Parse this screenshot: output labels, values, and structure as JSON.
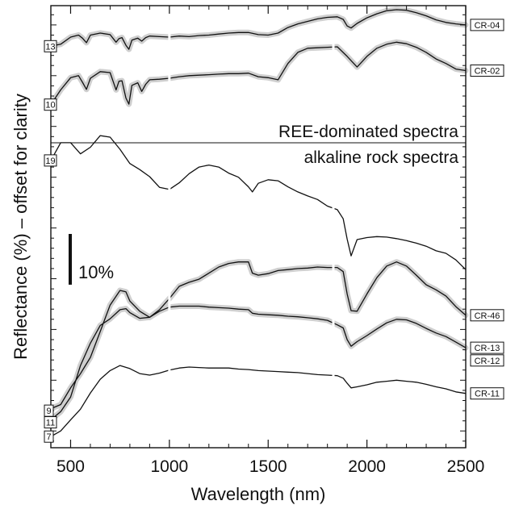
{
  "chart_data": {
    "type": "line",
    "xlabel": "Wavelength (nm)",
    "ylabel": "Reflectance (%) – offset for clarity",
    "xlim": [
      400,
      2500
    ],
    "xticks": [
      {
        "value": 500,
        "label": "500"
      },
      {
        "value": 1000,
        "label": "1000"
      },
      {
        "value": 1500,
        "label": "1500"
      },
      {
        "value": 2000,
        "label": "2000"
      },
      {
        "value": 2500,
        "label": "2500"
      }
    ],
    "grid": false,
    "legend": "none",
    "scale_bar": {
      "label": "10%",
      "value": 10
    },
    "section_labels": [
      "REE-dominated spectra",
      "alkaline rock spectra"
    ],
    "series": [
      {
        "name": "CR-04",
        "count": "13",
        "shaded": true,
        "points": [
          [
            400,
            65.8
          ],
          [
            450,
            66.2
          ],
          [
            500,
            67.6
          ],
          [
            540,
            68.0
          ],
          [
            560,
            67.4
          ],
          [
            580,
            66.5
          ],
          [
            600,
            68.0
          ],
          [
            650,
            68.4
          ],
          [
            700,
            68.1
          ],
          [
            730,
            66.6
          ],
          [
            745,
            67.3
          ],
          [
            760,
            67.5
          ],
          [
            780,
            66.0
          ],
          [
            795,
            65.2
          ],
          [
            810,
            67.0
          ],
          [
            840,
            67.4
          ],
          [
            860,
            66.8
          ],
          [
            880,
            67.5
          ],
          [
            900,
            67.8
          ],
          [
            950,
            67.7
          ],
          [
            1000,
            67.6
          ],
          [
            1050,
            67.8
          ],
          [
            1100,
            67.7
          ],
          [
            1150,
            67.9
          ],
          [
            1200,
            68.0
          ],
          [
            1250,
            68.2
          ],
          [
            1300,
            68.4
          ],
          [
            1350,
            68.5
          ],
          [
            1400,
            68.5
          ],
          [
            1450,
            68.1
          ],
          [
            1500,
            68.0
          ],
          [
            1550,
            68.4
          ],
          [
            1600,
            69.5
          ],
          [
            1650,
            70.2
          ],
          [
            1700,
            70.7
          ],
          [
            1750,
            71.2
          ],
          [
            1800,
            71.5
          ],
          [
            1850,
            71.6
          ],
          [
            1880,
            71.1
          ],
          [
            1900,
            69.8
          ],
          [
            1920,
            69.4
          ],
          [
            1950,
            70.3
          ],
          [
            2000,
            71.4
          ],
          [
            2050,
            72.2
          ],
          [
            2100,
            72.8
          ],
          [
            2150,
            73.0
          ],
          [
            2200,
            72.9
          ],
          [
            2250,
            72.4
          ],
          [
            2300,
            71.8
          ],
          [
            2350,
            71.0
          ],
          [
            2400,
            70.5
          ],
          [
            2450,
            70.2
          ],
          [
            2500,
            70.0
          ]
        ]
      },
      {
        "name": "CR-02",
        "count": "10",
        "shaded": true,
        "points": [
          [
            400,
            54.3
          ],
          [
            450,
            57.2
          ],
          [
            500,
            59.6
          ],
          [
            540,
            60.0
          ],
          [
            560,
            58.7
          ],
          [
            580,
            57.3
          ],
          [
            600,
            59.5
          ],
          [
            650,
            60.8
          ],
          [
            700,
            60.6
          ],
          [
            730,
            57.2
          ],
          [
            745,
            58.9
          ],
          [
            760,
            59.0
          ],
          [
            780,
            55.6
          ],
          [
            795,
            54.4
          ],
          [
            810,
            58.1
          ],
          [
            840,
            58.6
          ],
          [
            860,
            56.9
          ],
          [
            880,
            58.3
          ],
          [
            900,
            59.2
          ],
          [
            950,
            59.3
          ],
          [
            1000,
            59.5
          ],
          [
            1050,
            59.8
          ],
          [
            1100,
            60.0
          ],
          [
            1150,
            60.1
          ],
          [
            1200,
            60.2
          ],
          [
            1250,
            60.3
          ],
          [
            1300,
            60.4
          ],
          [
            1350,
            60.4
          ],
          [
            1400,
            60.5
          ],
          [
            1450,
            59.8
          ],
          [
            1500,
            59.6
          ],
          [
            1550,
            59.2
          ],
          [
            1600,
            62.4
          ],
          [
            1650,
            64.6
          ],
          [
            1700,
            65.4
          ],
          [
            1750,
            65.5
          ],
          [
            1800,
            65.6
          ],
          [
            1850,
            65.7
          ],
          [
            1900,
            63.8
          ],
          [
            1950,
            61.7
          ],
          [
            2000,
            63.8
          ],
          [
            2050,
            65.4
          ],
          [
            2100,
            66.2
          ],
          [
            2150,
            66.6
          ],
          [
            2200,
            66.3
          ],
          [
            2250,
            65.6
          ],
          [
            2300,
            64.6
          ],
          [
            2350,
            63.3
          ],
          [
            2400,
            62.4
          ],
          [
            2450,
            61.3
          ],
          [
            2500,
            61.0
          ]
        ]
      },
      {
        "name": "",
        "count": "19",
        "shaded": false,
        "points": [
          [
            400,
            43.3
          ],
          [
            450,
            46.8
          ],
          [
            500,
            46.8
          ],
          [
            550,
            44.6
          ],
          [
            600,
            45.9
          ],
          [
            650,
            48.2
          ],
          [
            700,
            47.9
          ],
          [
            750,
            45.5
          ],
          [
            800,
            42.7
          ],
          [
            850,
            41.5
          ],
          [
            900,
            40.1
          ],
          [
            950,
            38.0
          ],
          [
            1000,
            37.6
          ],
          [
            1050,
            38.9
          ],
          [
            1100,
            40.7
          ],
          [
            1150,
            42.0
          ],
          [
            1200,
            42.4
          ],
          [
            1250,
            42.0
          ],
          [
            1300,
            40.8
          ],
          [
            1350,
            40.0
          ],
          [
            1400,
            38.1
          ],
          [
            1420,
            37.1
          ],
          [
            1450,
            38.8
          ],
          [
            1500,
            39.5
          ],
          [
            1550,
            39.3
          ],
          [
            1600,
            38.1
          ],
          [
            1650,
            37.1
          ],
          [
            1700,
            36.3
          ],
          [
            1750,
            35.6
          ],
          [
            1800,
            34.3
          ],
          [
            1850,
            33.6
          ],
          [
            1880,
            31.8
          ],
          [
            1900,
            27.8
          ],
          [
            1920,
            24.5
          ],
          [
            1950,
            27.7
          ],
          [
            2000,
            28.1
          ],
          [
            2050,
            28.3
          ],
          [
            2100,
            28.2
          ],
          [
            2150,
            27.9
          ],
          [
            2200,
            27.5
          ],
          [
            2250,
            27.0
          ],
          [
            2300,
            26.4
          ],
          [
            2350,
            25.5
          ],
          [
            2400,
            25.0
          ],
          [
            2450,
            23.7
          ],
          [
            2500,
            21.8
          ]
        ]
      },
      {
        "name": "CR-46",
        "count": "",
        "shaded": true,
        "points": [
          [
            400,
            -5.6
          ],
          [
            450,
            -4.8
          ],
          [
            500,
            -1.5
          ],
          [
            550,
            1.3
          ],
          [
            600,
            4.5
          ],
          [
            650,
            9.6
          ],
          [
            700,
            14.8
          ],
          [
            750,
            17.7
          ],
          [
            780,
            17.4
          ],
          [
            800,
            15.6
          ],
          [
            850,
            13.6
          ],
          [
            900,
            12.4
          ],
          [
            950,
            13.9
          ],
          [
            1000,
            16.1
          ],
          [
            1050,
            18.5
          ],
          [
            1100,
            19.3
          ],
          [
            1150,
            19.9
          ],
          [
            1200,
            21.1
          ],
          [
            1250,
            22.3
          ],
          [
            1300,
            23.0
          ],
          [
            1350,
            23.3
          ],
          [
            1400,
            23.3
          ],
          [
            1420,
            21.1
          ],
          [
            1450,
            20.7
          ],
          [
            1500,
            21.0
          ],
          [
            1550,
            21.6
          ],
          [
            1600,
            21.8
          ],
          [
            1650,
            22.0
          ],
          [
            1700,
            22.1
          ],
          [
            1750,
            22.3
          ],
          [
            1800,
            22.2
          ],
          [
            1850,
            22.2
          ],
          [
            1880,
            21.4
          ],
          [
            1900,
            17.0
          ],
          [
            1920,
            13.7
          ],
          [
            1950,
            13.6
          ],
          [
            2000,
            17.0
          ],
          [
            2050,
            20.2
          ],
          [
            2100,
            22.5
          ],
          [
            2150,
            23.3
          ],
          [
            2200,
            22.5
          ],
          [
            2250,
            20.7
          ],
          [
            2300,
            18.8
          ],
          [
            2350,
            17.8
          ],
          [
            2400,
            16.6
          ],
          [
            2450,
            14.5
          ],
          [
            2500,
            12.8
          ]
        ]
      },
      {
        "name": "CR-13",
        "count": "",
        "shaded": true,
        "points": [
          [
            400,
            -7.8
          ],
          [
            450,
            -6.2
          ],
          [
            500,
            -3.3
          ],
          [
            550,
            2.9
          ],
          [
            600,
            7.3
          ],
          [
            650,
            10.8
          ],
          [
            700,
            12.1
          ],
          [
            750,
            13.9
          ],
          [
            780,
            14.1
          ],
          [
            800,
            13.3
          ],
          [
            850,
            12.2
          ],
          [
            900,
            12.4
          ],
          [
            950,
            13.6
          ],
          [
            1000,
            14.4
          ],
          [
            1050,
            14.6
          ],
          [
            1100,
            14.6
          ],
          [
            1150,
            14.6
          ],
          [
            1200,
            14.4
          ],
          [
            1250,
            14.3
          ],
          [
            1300,
            14.2
          ],
          [
            1350,
            14.0
          ],
          [
            1400,
            13.9
          ],
          [
            1420,
            13.2
          ],
          [
            1450,
            13.0
          ],
          [
            1500,
            12.9
          ],
          [
            1550,
            12.8
          ],
          [
            1600,
            12.6
          ],
          [
            1650,
            12.5
          ],
          [
            1700,
            12.3
          ],
          [
            1750,
            12.1
          ],
          [
            1800,
            11.8
          ],
          [
            1850,
            10.9
          ],
          [
            1880,
            10.3
          ],
          [
            1900,
            8.0
          ],
          [
            1920,
            6.7
          ],
          [
            1950,
            7.6
          ],
          [
            2000,
            8.8
          ],
          [
            2050,
            10.1
          ],
          [
            2100,
            11.3
          ],
          [
            2150,
            12.0
          ],
          [
            2200,
            11.9
          ],
          [
            2250,
            11.2
          ],
          [
            2300,
            10.2
          ],
          [
            2350,
            9.3
          ],
          [
            2400,
            8.6
          ],
          [
            2450,
            7.5
          ],
          [
            2500,
            6.4
          ]
        ]
      },
      {
        "name": "CR-11",
        "count": "7",
        "shaded": false,
        "points": [
          [
            400,
            -11.1
          ],
          [
            450,
            -10.0
          ],
          [
            500,
            -7.8
          ],
          [
            550,
            -5.7
          ],
          [
            600,
            -2.5
          ],
          [
            650,
            0.2
          ],
          [
            700,
            1.9
          ],
          [
            750,
            2.9
          ],
          [
            800,
            2.3
          ],
          [
            850,
            1.3
          ],
          [
            900,
            1.0
          ],
          [
            950,
            1.4
          ],
          [
            1000,
            2.0
          ],
          [
            1050,
            2.4
          ],
          [
            1100,
            2.6
          ],
          [
            1150,
            2.5
          ],
          [
            1200,
            2.4
          ],
          [
            1250,
            2.4
          ],
          [
            1300,
            2.4
          ],
          [
            1350,
            2.2
          ],
          [
            1400,
            2.1
          ],
          [
            1450,
            1.9
          ],
          [
            1500,
            1.8
          ],
          [
            1550,
            1.7
          ],
          [
            1600,
            1.6
          ],
          [
            1650,
            1.5
          ],
          [
            1700,
            1.3
          ],
          [
            1750,
            1.1
          ],
          [
            1800,
            1.0
          ],
          [
            1850,
            0.9
          ],
          [
            1880,
            0.4
          ],
          [
            1900,
            -0.6
          ],
          [
            1920,
            -1.5
          ],
          [
            1950,
            -1.3
          ],
          [
            2000,
            -0.9
          ],
          [
            2050,
            -0.4
          ],
          [
            2100,
            -0.2
          ],
          [
            2150,
            0.0
          ],
          [
            2200,
            -0.2
          ],
          [
            2250,
            -0.4
          ],
          [
            2300,
            -0.8
          ],
          [
            2350,
            -1.3
          ],
          [
            2400,
            -1.7
          ],
          [
            2450,
            -2.3
          ],
          [
            2500,
            -2.6
          ]
        ]
      }
    ],
    "extra_tags": [
      {
        "name": "CR-12",
        "y": 3.9
      },
      {
        "name": "",
        "count": "9",
        "y": -6.0
      },
      {
        "name": "",
        "count": "11",
        "y": -8.3
      }
    ]
  }
}
